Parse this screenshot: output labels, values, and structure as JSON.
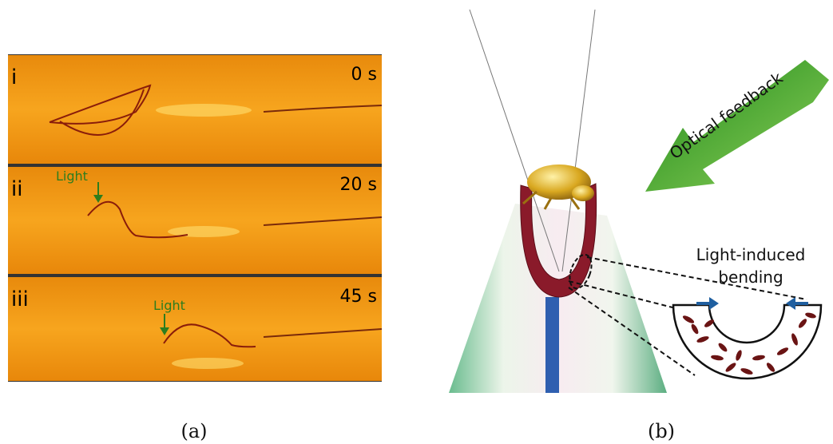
{
  "panel_a": {
    "strips": [
      {
        "label": "i",
        "time": "0 s"
      },
      {
        "label": "ii",
        "time": "20 s",
        "annotation": "Light"
      },
      {
        "label": "iii",
        "time": "45 s",
        "annotation": "Light"
      }
    ],
    "caption": "(a)"
  },
  "panel_b": {
    "arrow_label": "Optical feedback",
    "inset_label": [
      "Light-induced",
      "bending"
    ],
    "caption": "(b)"
  }
}
